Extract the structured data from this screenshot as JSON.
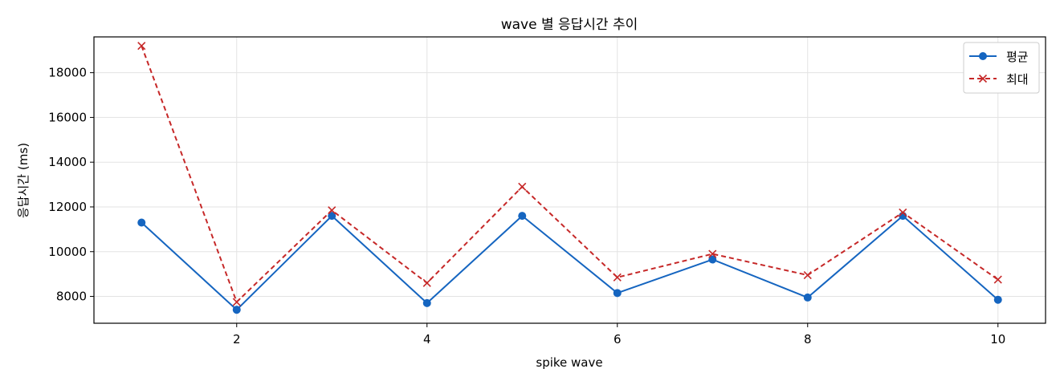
{
  "chart_data": {
    "type": "line",
    "title": "wave 별 응답시간 추이",
    "xlabel": "spike wave",
    "ylabel": "응답시간 (ms)",
    "x": [
      1,
      2,
      3,
      4,
      5,
      6,
      7,
      8,
      9,
      10
    ],
    "xlim": [
      0.5,
      10.5
    ],
    "ylim": [
      6800,
      19600
    ],
    "xticks": [
      2,
      4,
      6,
      8,
      10
    ],
    "yticks": [
      8000,
      10000,
      12000,
      14000,
      16000,
      18000
    ],
    "grid": true,
    "legend_position": "top-right",
    "series": [
      {
        "name": "평균",
        "values": [
          11300,
          7400,
          11600,
          7700,
          11600,
          8150,
          9650,
          7950,
          11600,
          7850
        ],
        "color": "#1565c0",
        "marker": "circle",
        "line_style": "solid"
      },
      {
        "name": "최대",
        "values": [
          19200,
          7750,
          11850,
          8600,
          12900,
          8850,
          9900,
          8950,
          11750,
          8750
        ],
        "color": "#c62828",
        "marker": "x",
        "line_style": "dashed"
      }
    ]
  }
}
